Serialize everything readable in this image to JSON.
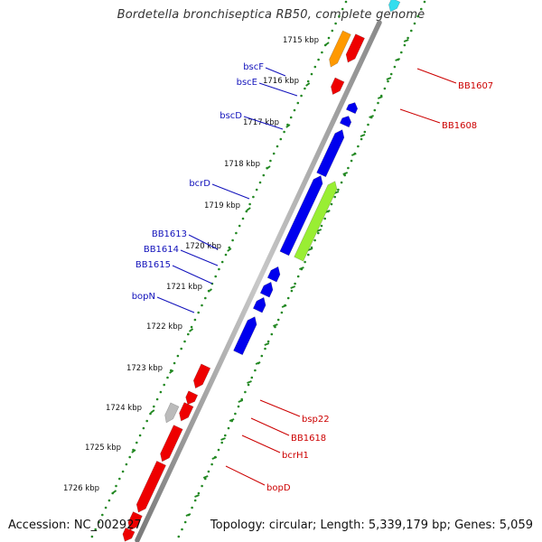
{
  "title": "Bordetella bronchiseptica RB50, complete genome",
  "footer": {
    "accession": "Accession: NC_002927",
    "summary": "Topology: circular; Length: 5,339,179 bp; Genes: 5,059"
  },
  "ticks": [
    "1715 kbp",
    "1716 kbp",
    "1717 kbp",
    "1718 kbp",
    "1719 kbp",
    "1720 kbp",
    "1721 kbp",
    "1722 kbp",
    "1723 kbp",
    "1724 kbp",
    "1725 kbp",
    "1726 kbp"
  ],
  "labels_left": [
    "bscF",
    "bscE",
    "bscD",
    "bcrD",
    "BB1613",
    "BB1614",
    "BB1615",
    "bopN"
  ],
  "labels_right": [
    "BB1607",
    "BB1608",
    "bsp22",
    "BB1618",
    "bcrH1",
    "bopD"
  ],
  "colors": {
    "forward": "#0000ee",
    "reverse": "#ee0000",
    "green_feature": "#99ee33",
    "orange_feature": "#ff9900",
    "cyan_feature": "#33ddee",
    "gray_feature": "#bbbbbb",
    "backbone": "#999999",
    "scale_dots": "#228822",
    "label_left": "#1111bb",
    "label_right": "#cc0000"
  }
}
